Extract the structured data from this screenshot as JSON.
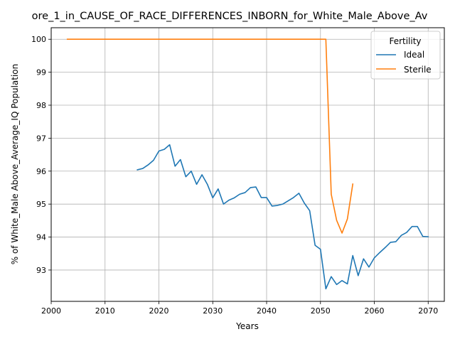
{
  "chart_data": {
    "type": "line",
    "title": "ore_1_in_CAUSE_OF_RACE_DIFFERENCES_INBORN_for_White_Male_Above_Av",
    "xlabel": "Years",
    "ylabel": "% of White_Male Above_Average_IQ Population",
    "xlim": [
      2000,
      2073
    ],
    "ylim": [
      92.05,
      100.35
    ],
    "xticks": [
      2000,
      2010,
      2020,
      2030,
      2040,
      2050,
      2060,
      2070
    ],
    "xtick_labels": [
      "2000",
      "2010",
      "2020",
      "2030",
      "2040",
      "2050",
      "2060",
      "2070"
    ],
    "yticks": [
      93,
      94,
      95,
      96,
      97,
      98,
      99,
      100
    ],
    "ytick_labels": [
      "93",
      "94",
      "95",
      "96",
      "97",
      "98",
      "99",
      "100"
    ],
    "grid": true,
    "legend": {
      "title": "Fertility",
      "placement": "top-right"
    },
    "series": [
      {
        "name": "Ideal",
        "color": "#1f77b4",
        "x": [
          2016,
          2017,
          2018,
          2019,
          2020,
          2021,
          2022,
          2023,
          2024,
          2025,
          2026,
          2027,
          2028,
          2029,
          2030,
          2031,
          2032,
          2033,
          2034,
          2035,
          2036,
          2037,
          2038,
          2039,
          2040,
          2041,
          2042,
          2043,
          2044,
          2045,
          2046,
          2047,
          2048,
          2049,
          2050,
          2051,
          2052,
          2053,
          2054,
          2055,
          2056,
          2057,
          2058,
          2059,
          2060,
          2061,
          2062,
          2063,
          2064,
          2065,
          2066,
          2067,
          2068,
          2069,
          2070
        ],
        "y": [
          96.04,
          96.08,
          96.19,
          96.33,
          96.61,
          96.66,
          96.8,
          96.15,
          96.35,
          95.83,
          96.0,
          95.6,
          95.89,
          95.6,
          95.19,
          95.46,
          95.0,
          95.12,
          95.19,
          95.3,
          95.35,
          95.5,
          95.52,
          95.2,
          95.2,
          94.94,
          94.96,
          95.0,
          95.1,
          95.2,
          95.33,
          95.03,
          94.8,
          93.75,
          93.63,
          92.43,
          92.8,
          92.56,
          92.68,
          92.58,
          93.44,
          92.83,
          93.34,
          93.09,
          93.37,
          93.53,
          93.68,
          93.84,
          93.86,
          94.05,
          94.14,
          94.32,
          94.32,
          94.02,
          94.01
        ]
      },
      {
        "name": "Sterile",
        "color": "#ff7f0e",
        "x": [
          2003,
          2010,
          2020,
          2030,
          2040,
          2050,
          2051,
          2052,
          2053,
          2054,
          2055,
          2056
        ],
        "y": [
          100,
          100,
          100,
          100,
          100,
          100,
          100,
          95.3,
          94.51,
          94.12,
          94.55,
          95.61
        ]
      }
    ]
  }
}
